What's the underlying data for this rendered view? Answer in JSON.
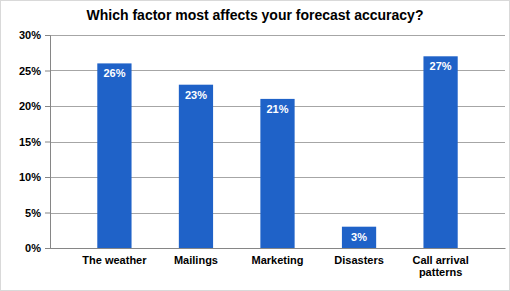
{
  "chart_data": {
    "type": "bar",
    "title": "Which factor most affects your forecast accuracy?",
    "categories": [
      "The weather",
      "Mailings",
      "Marketing",
      "Disasters",
      "Call arrival patterns"
    ],
    "values": [
      26,
      23,
      21,
      3,
      27
    ],
    "value_labels": [
      "26%",
      "23%",
      "21%",
      "3%",
      "27%"
    ],
    "data_labels": true,
    "color": "#1f62c8",
    "ylim": [
      0,
      30
    ],
    "yticks": [
      {
        "value": 0,
        "label": "0%"
      },
      {
        "value": 5,
        "label": "5%"
      },
      {
        "value": 10,
        "label": "10%"
      },
      {
        "value": 15,
        "label": "15%"
      },
      {
        "value": 20,
        "label": "20%"
      },
      {
        "value": 25,
        "label": "25%"
      },
      {
        "value": 30,
        "label": "30%"
      }
    ],
    "grid": true
  }
}
